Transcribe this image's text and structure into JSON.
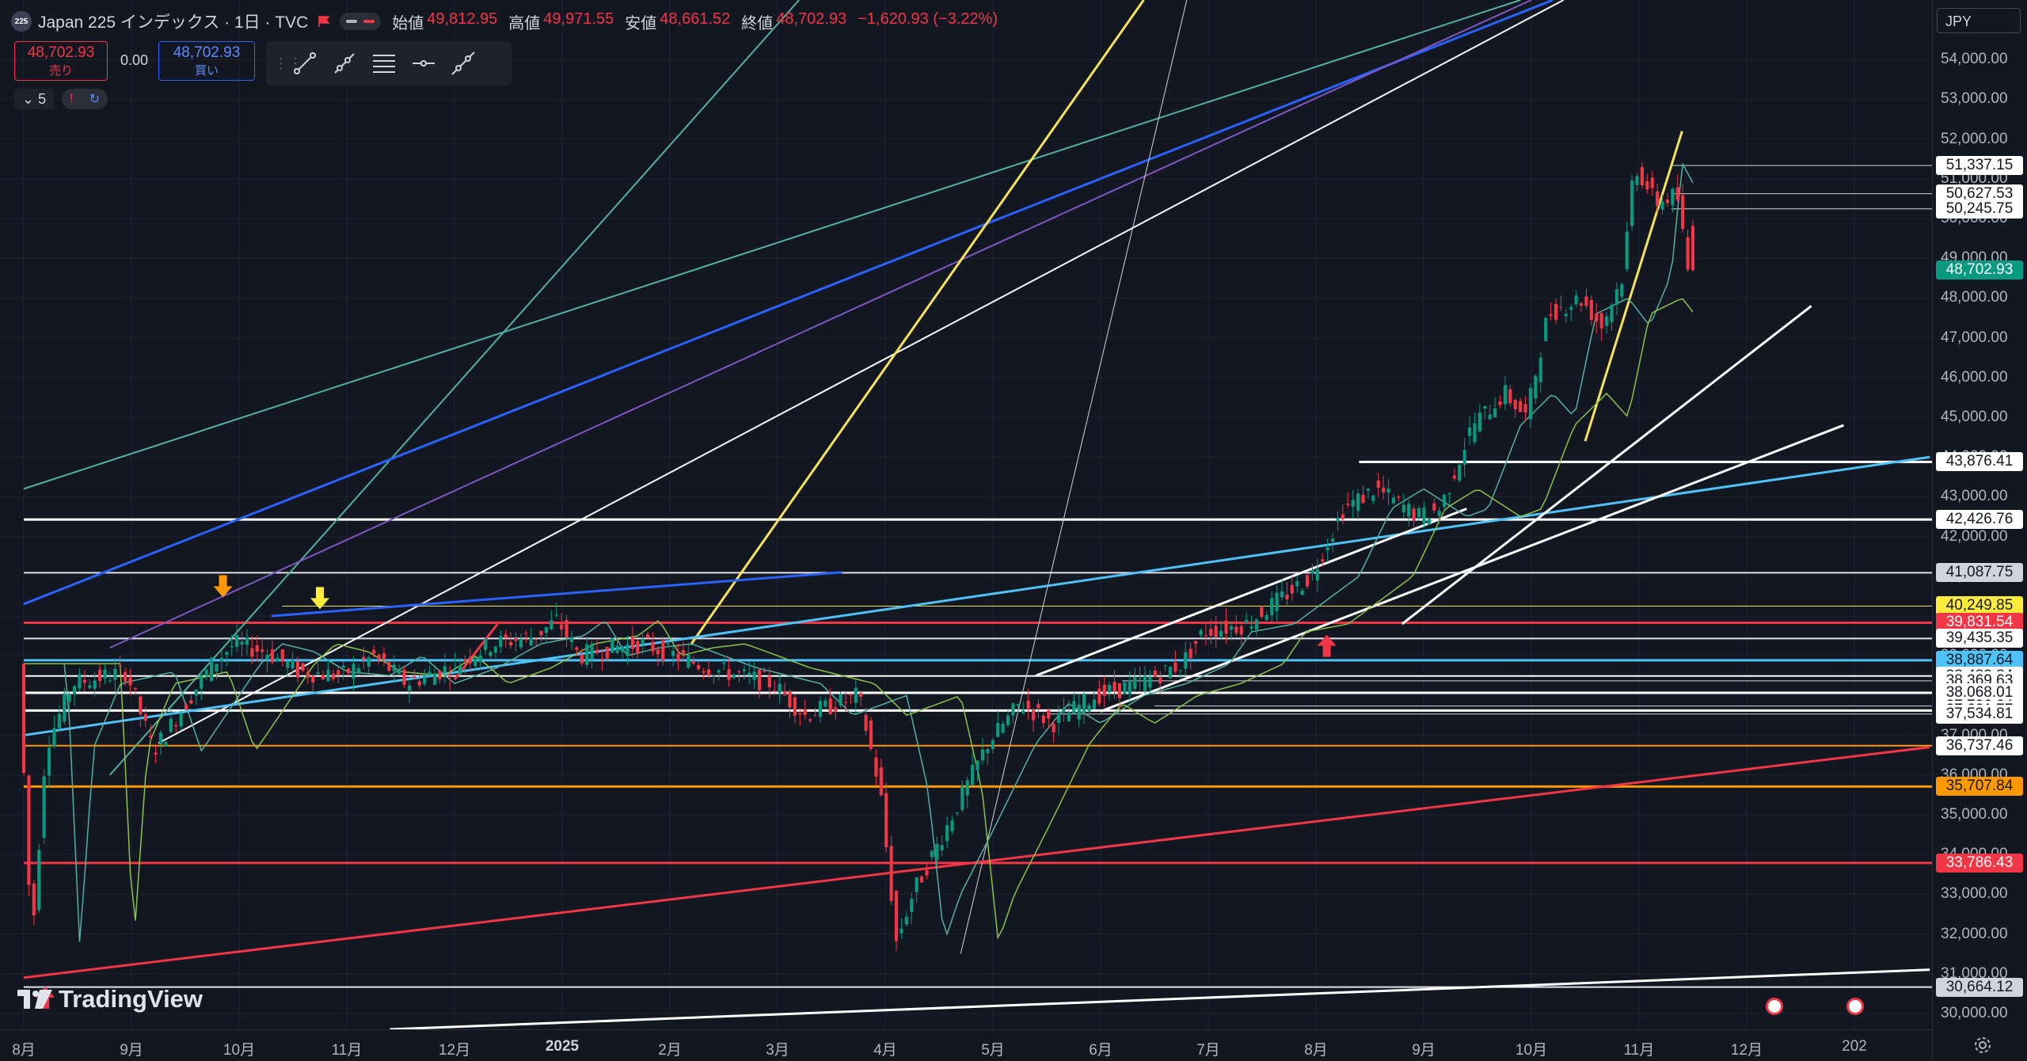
{
  "header": {
    "logo_text": "225",
    "symbol_title": "Japan 225 インデックス · 1日 · TVC",
    "ohlc": [
      {
        "k": "始値",
        "v": "49,812.95"
      },
      {
        "k": "高値",
        "v": "49,971.55"
      },
      {
        "k": "安値",
        "v": "48,661.52"
      },
      {
        "k": "終値",
        "v": "48,702.93"
      }
    ],
    "change": "−1,620.93 (−3.22%)"
  },
  "trade": {
    "sell_price": "48,702.93",
    "sell_label": "売り",
    "spread": "0.00",
    "buy_price": "48,702.93",
    "buy_label": "買い"
  },
  "indicators": {
    "count": "5"
  },
  "currency": "JPY",
  "watermark": "TradingView",
  "colors": {
    "up": "#089981",
    "down": "#f23645",
    "background": "#131722",
    "ma_fast": "#53b1a0",
    "ma_slow": "#8bc34a"
  },
  "chart_data": {
    "type": "candlestick",
    "symbol": "Japan 225",
    "timeframe": "1日",
    "ylim": [
      29600,
      55500
    ],
    "y_ticks": [
      "30,000.00",
      "31,000.00",
      "32,000.00",
      "33,000.00",
      "34,000.00",
      "35,000.00",
      "36,000.00",
      "37,000.00",
      "38,000.00",
      "39,000.00",
      "40,000.00",
      "41,000.00",
      "42,000.00",
      "43,000.00",
      "44,000.00",
      "45,000.00",
      "46,000.00",
      "47,000.00",
      "48,000.00",
      "49,000.00",
      "50,000.00",
      "51,000.00",
      "52,000.00",
      "53,000.00",
      "54,000.00"
    ],
    "x_ticks": [
      {
        "label": "8月",
        "month_index": 0
      },
      {
        "label": "9月",
        "month_index": 1
      },
      {
        "label": "10月",
        "month_index": 2
      },
      {
        "label": "11月",
        "month_index": 3
      },
      {
        "label": "12月",
        "month_index": 4
      },
      {
        "label": "2025",
        "month_index": 5,
        "bold": true
      },
      {
        "label": "2月",
        "month_index": 6
      },
      {
        "label": "3月",
        "month_index": 7
      },
      {
        "label": "4月",
        "month_index": 8
      },
      {
        "label": "5月",
        "month_index": 9
      },
      {
        "label": "6月",
        "month_index": 10
      },
      {
        "label": "7月",
        "month_index": 11
      },
      {
        "label": "8月",
        "month_index": 12
      },
      {
        "label": "9月",
        "month_index": 13
      },
      {
        "label": "10月",
        "month_index": 14
      },
      {
        "label": "11月",
        "month_index": 15
      },
      {
        "label": "12月",
        "month_index": 16
      },
      {
        "label": "202",
        "month_index": 17
      }
    ],
    "price_path": [
      [
        0.0,
        38800
      ],
      [
        0.12,
        31700
      ],
      [
        0.25,
        36700
      ],
      [
        0.5,
        38300
      ],
      [
        1.0,
        38600
      ],
      [
        1.25,
        36600
      ],
      [
        1.5,
        37600
      ],
      [
        1.8,
        38800
      ],
      [
        2.0,
        39300
      ],
      [
        2.3,
        39100
      ],
      [
        2.6,
        38600
      ],
      [
        3.0,
        38500
      ],
      [
        3.3,
        39000
      ],
      [
        3.6,
        38300
      ],
      [
        4.0,
        38700
      ],
      [
        4.4,
        39300
      ],
      [
        4.8,
        39500
      ],
      [
        5.0,
        39900
      ],
      [
        5.2,
        39000
      ],
      [
        5.5,
        39200
      ],
      [
        5.8,
        39300
      ],
      [
        6.1,
        39000
      ],
      [
        6.4,
        38700
      ],
      [
        7.0,
        38300
      ],
      [
        7.3,
        37500
      ],
      [
        7.6,
        37800
      ],
      [
        7.8,
        38000
      ],
      [
        8.0,
        35600
      ],
      [
        8.15,
        31800
      ],
      [
        8.3,
        33000
      ],
      [
        8.6,
        34600
      ],
      [
        9.0,
        36800
      ],
      [
        9.3,
        37800
      ],
      [
        9.6,
        37300
      ],
      [
        10.0,
        38000
      ],
      [
        10.4,
        38300
      ],
      [
        10.8,
        38800
      ],
      [
        11.0,
        39600
      ],
      [
        11.4,
        39800
      ],
      [
        11.8,
        40600
      ],
      [
        12.0,
        41000
      ],
      [
        12.3,
        42700
      ],
      [
        12.6,
        43200
      ],
      [
        13.0,
        42500
      ],
      [
        13.2,
        42700
      ],
      [
        13.5,
        44800
      ],
      [
        13.8,
        45600
      ],
      [
        14.0,
        45000
      ],
      [
        14.2,
        47600
      ],
      [
        14.5,
        48000
      ],
      [
        14.7,
        47300
      ],
      [
        14.9,
        48600
      ],
      [
        15.0,
        51400
      ],
      [
        15.2,
        50400
      ],
      [
        15.4,
        50600
      ],
      [
        15.5,
        48700
      ]
    ],
    "moving_averages": [
      {
        "color": "#53b1a0",
        "lag": 0.4
      },
      {
        "color": "#8bc34a",
        "lag": 0.9
      }
    ],
    "horizontal_levels": [
      {
        "value": 51337.15,
        "label": "51,337.15",
        "color": "#d1d4dc",
        "badge_bg": "#ffffff",
        "badge_fg": "#131722",
        "from": 15.3,
        "width": 1
      },
      {
        "value": 50627.53,
        "label": "50,627.53",
        "color": "#d1d4dc",
        "badge_bg": "#ffffff",
        "badge_fg": "#131722",
        "from": 15.3,
        "width": 1
      },
      {
        "value": 50245.75,
        "label": "50,245.75",
        "color": "#d1d4dc",
        "badge_bg": "#ffffff",
        "badge_fg": "#131722",
        "from": 15.3,
        "width": 1
      },
      {
        "value": 43876.41,
        "label": "43,876.41",
        "color": "#ffffff",
        "badge_bg": "#ffffff",
        "badge_fg": "#131722",
        "from": 12.4,
        "width": 3
      },
      {
        "value": 42426.76,
        "label": "42,426.76",
        "color": "#ffffff",
        "badge_bg": "#ffffff",
        "badge_fg": "#131722",
        "from": 0,
        "width": 3
      },
      {
        "value": 41087.75,
        "label": "41,087.75",
        "color": "#e0e3eb",
        "badge_bg": "#d1d4dc",
        "badge_fg": "#131722",
        "from": 0,
        "width": 2
      },
      {
        "value": 40249.85,
        "label": "40,249.85",
        "color": "#f7e35a",
        "badge_bg": "#ffeb3b",
        "badge_fg": "#131722",
        "from": 2.4,
        "width": 1
      },
      {
        "value": 39831.54,
        "label": "39,831.54",
        "color": "#f23645",
        "badge_bg": "#f23645",
        "badge_fg": "#ffffff",
        "from": 0,
        "width": 3
      },
      {
        "value": 39435.35,
        "label": "39,435.35",
        "color": "#e0e3eb",
        "badge_bg": "#ffffff",
        "badge_fg": "#131722",
        "from": 0,
        "width": 2
      },
      {
        "value": 38887.64,
        "label": "38,887.64",
        "color": "#4fc3f7",
        "badge_bg": "#4fc3f7",
        "badge_fg": "#131722",
        "from": 0,
        "width": 3
      },
      {
        "value": 38489.84,
        "label": "38,489.84",
        "color": "#ffffff",
        "badge_bg": "#ffffff",
        "badge_fg": "#131722",
        "from": 0,
        "width": 2
      },
      {
        "value": 38369.63,
        "label": "38,369.63",
        "color": "#d1d4dc",
        "badge_bg": "#ffffff",
        "badge_fg": "#131722",
        "from": 10.2,
        "width": 1
      },
      {
        "value": 38068.01,
        "label": "38,068.01",
        "color": "#ffffff",
        "badge_bg": "#ffffff",
        "badge_fg": "#131722",
        "from": 0,
        "width": 3
      },
      {
        "value": 37736.04,
        "label": "37,736.04",
        "color": "#d1d4dc",
        "badge_bg": "#ffffff",
        "badge_fg": "#131722",
        "from": 10.5,
        "width": 1
      },
      {
        "value": 37621.77,
        "label": "37,621.77",
        "color": "#ffffff",
        "badge_bg": "#ffffff",
        "badge_fg": "#131722",
        "from": 0,
        "width": 3
      },
      {
        "value": 37534.81,
        "label": "37,534.81",
        "color": "#d1d4dc",
        "badge_bg": "#ffffff",
        "badge_fg": "#131722",
        "from": 9.5,
        "width": 1
      },
      {
        "value": 36737.46,
        "label": "36,737.46",
        "color": "#ff9800",
        "badge_bg": "#ffffff",
        "badge_fg": "#131722",
        "from": 0,
        "width": 2
      },
      {
        "value": 35707.84,
        "label": "35,707.84",
        "color": "#ff9800",
        "badge_bg": "#ff9800",
        "badge_fg": "#131722",
        "from": 0,
        "width": 3
      },
      {
        "value": 33786.43,
        "label": "33,786.43",
        "color": "#f23645",
        "badge_bg": "#f23645",
        "badge_fg": "#ffffff",
        "from": 0,
        "width": 3
      },
      {
        "value": 30664.12,
        "label": "30,664.12",
        "color": "#e0e3eb",
        "badge_bg": "#d1d4dc",
        "badge_fg": "#131722",
        "from": 0,
        "width": 2
      }
    ],
    "last_price": {
      "value": 48702.93,
      "label": "48,702.93",
      "badge_bg": "#089981",
      "badge_fg": "#ffffff"
    },
    "trend_lines": [
      {
        "color": "#53b1a0",
        "width": 2,
        "p1": [
          0.0,
          43200
        ],
        "p2": [
          13.9,
          55500
        ]
      },
      {
        "color": "#53b1a0",
        "width": 2,
        "p1": [
          0.8,
          36000
        ],
        "p2": [
          7.2,
          55500
        ]
      },
      {
        "color": "#2962ff",
        "width": 3,
        "p1": [
          0.0,
          40300
        ],
        "p2": [
          14.2,
          55500
        ]
      },
      {
        "color": "#7e57c2",
        "width": 2,
        "p1": [
          0.8,
          39200
        ],
        "p2": [
          14.0,
          55500
        ]
      },
      {
        "color": "#ffffff",
        "width": 2,
        "p1": [
          1.25,
          36800
        ],
        "p2": [
          14.3,
          55500
        ]
      },
      {
        "color": "#f7e35a",
        "width": 3,
        "p1": [
          6.2,
          39300
        ],
        "p2": [
          10.4,
          55500
        ]
      },
      {
        "color": "#d1d4dc",
        "width": 1,
        "p1": [
          8.7,
          31500
        ],
        "p2": [
          10.8,
          55500
        ]
      },
      {
        "color": "#2962ff",
        "width": 3,
        "p1": [
          2.3,
          40000
        ],
        "p2": [
          7.6,
          41100
        ]
      },
      {
        "color": "#4fc3f7",
        "width": 3,
        "p1": [
          0.0,
          37000
        ],
        "p2": [
          17.7,
          44000
        ]
      },
      {
        "color": "#f23645",
        "width": 3,
        "p1": [
          0.0,
          30900
        ],
        "p2": [
          17.7,
          36700
        ]
      },
      {
        "color": "#ffffff",
        "width": 3,
        "p1": [
          3.4,
          29600
        ],
        "p2": [
          17.7,
          31100
        ]
      },
      {
        "color": "#ffffff",
        "width": 3,
        "p1": [
          9.4,
          38500
        ],
        "p2": [
          13.4,
          42700
        ]
      },
      {
        "color": "#ffffff",
        "width": 3,
        "p1": [
          10.0,
          37600
        ],
        "p2": [
          16.9,
          44800
        ]
      },
      {
        "color": "#ffffff",
        "width": 3,
        "p1": [
          12.8,
          39800
        ],
        "p2": [
          16.6,
          47800
        ]
      },
      {
        "color": "#f7e35a",
        "width": 3,
        "p1": [
          14.5,
          44400
        ],
        "p2": [
          15.4,
          52200
        ]
      },
      {
        "color": "#f23645",
        "width": 3,
        "p1": [
          4.0,
          38400
        ],
        "p2": [
          4.4,
          39800
        ]
      }
    ],
    "markers": [
      {
        "type": "arrow-up",
        "color": "#f23645",
        "x": 0.2,
        "y": 30400
      },
      {
        "type": "arrow-down",
        "color": "#ff9800",
        "x": 1.85,
        "y": 40750
      },
      {
        "type": "arrow-down",
        "color": "#ffeb3b",
        "x": 2.75,
        "y": 40450
      },
      {
        "type": "arrow-up",
        "color": "#f23645",
        "x": 12.1,
        "y": 39250
      }
    ]
  }
}
